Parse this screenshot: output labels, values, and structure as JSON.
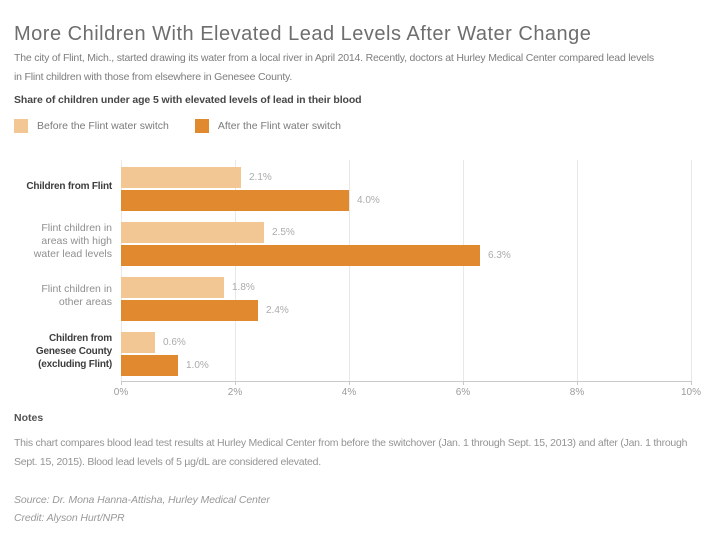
{
  "header": {
    "title": "More Children With Elevated Lead Levels After Water Change",
    "subtitle_lines": [
      "The city of Flint, Mich., started drawing its water from a local river in April 2014. Recently, doctors at Hurley Medical Center compared lead levels",
      "in Flint children with those from elsewhere in Genesee County."
    ]
  },
  "chart_data": {
    "type": "bar",
    "orientation": "horizontal",
    "title": "Share of children under age 5 with elevated levels of lead in their blood",
    "xlabel": "",
    "ylabel": "",
    "xlim": [
      0,
      10
    ],
    "x_ticks": [
      "0%",
      "2%",
      "4%",
      "6%",
      "8%",
      "10%"
    ],
    "grid": true,
    "legend_position": "top",
    "categories": [
      "Children from Flint",
      "Flint children in areas with high water lead levels",
      "Flint children in other areas",
      "Children from Genesee County (excluding Flint)"
    ],
    "category_lines": [
      [
        "Children from Flint"
      ],
      [
        "Flint children in",
        "areas with high",
        "water lead levels"
      ],
      [
        "Flint children in",
        "other areas"
      ],
      [
        "Children from",
        "Genesee County",
        "(excluding Flint)"
      ]
    ],
    "category_emphasis": [
      true,
      false,
      false,
      true
    ],
    "series": [
      {
        "name": "Before the Flint water switch",
        "color": "#F2C794",
        "values": [
          2.1,
          2.5,
          1.8,
          0.6
        ]
      },
      {
        "name": "After the Flint water switch",
        "color": "#E1892E",
        "values": [
          4.0,
          6.3,
          2.4,
          1.0
        ]
      }
    ],
    "value_labels": [
      [
        "2.1%",
        "2.5%",
        "1.8%",
        "0.6%"
      ],
      [
        "4.0%",
        "6.3%",
        "2.4%",
        "1.0%"
      ]
    ]
  },
  "notes": {
    "heading": "Notes",
    "body_lines": [
      "This chart compares blood lead test results at Hurley Medical Center from before the switchover (Jan. 1 through Sept. 15, 2013) and after (Jan. 1 through",
      "Sept. 15, 2015). Blood lead levels of 5 µg/dL are considered elevated."
    ],
    "source": "Source: Dr. Mona Hanna-Attisha, Hurley Medical Center",
    "credit": "Credit: Alyson Hurt/NPR"
  },
  "colors": {
    "before": "#F2C794",
    "after": "#E1892E",
    "gridline": "#E8E8E8",
    "axis": "#C9C9C9"
  }
}
